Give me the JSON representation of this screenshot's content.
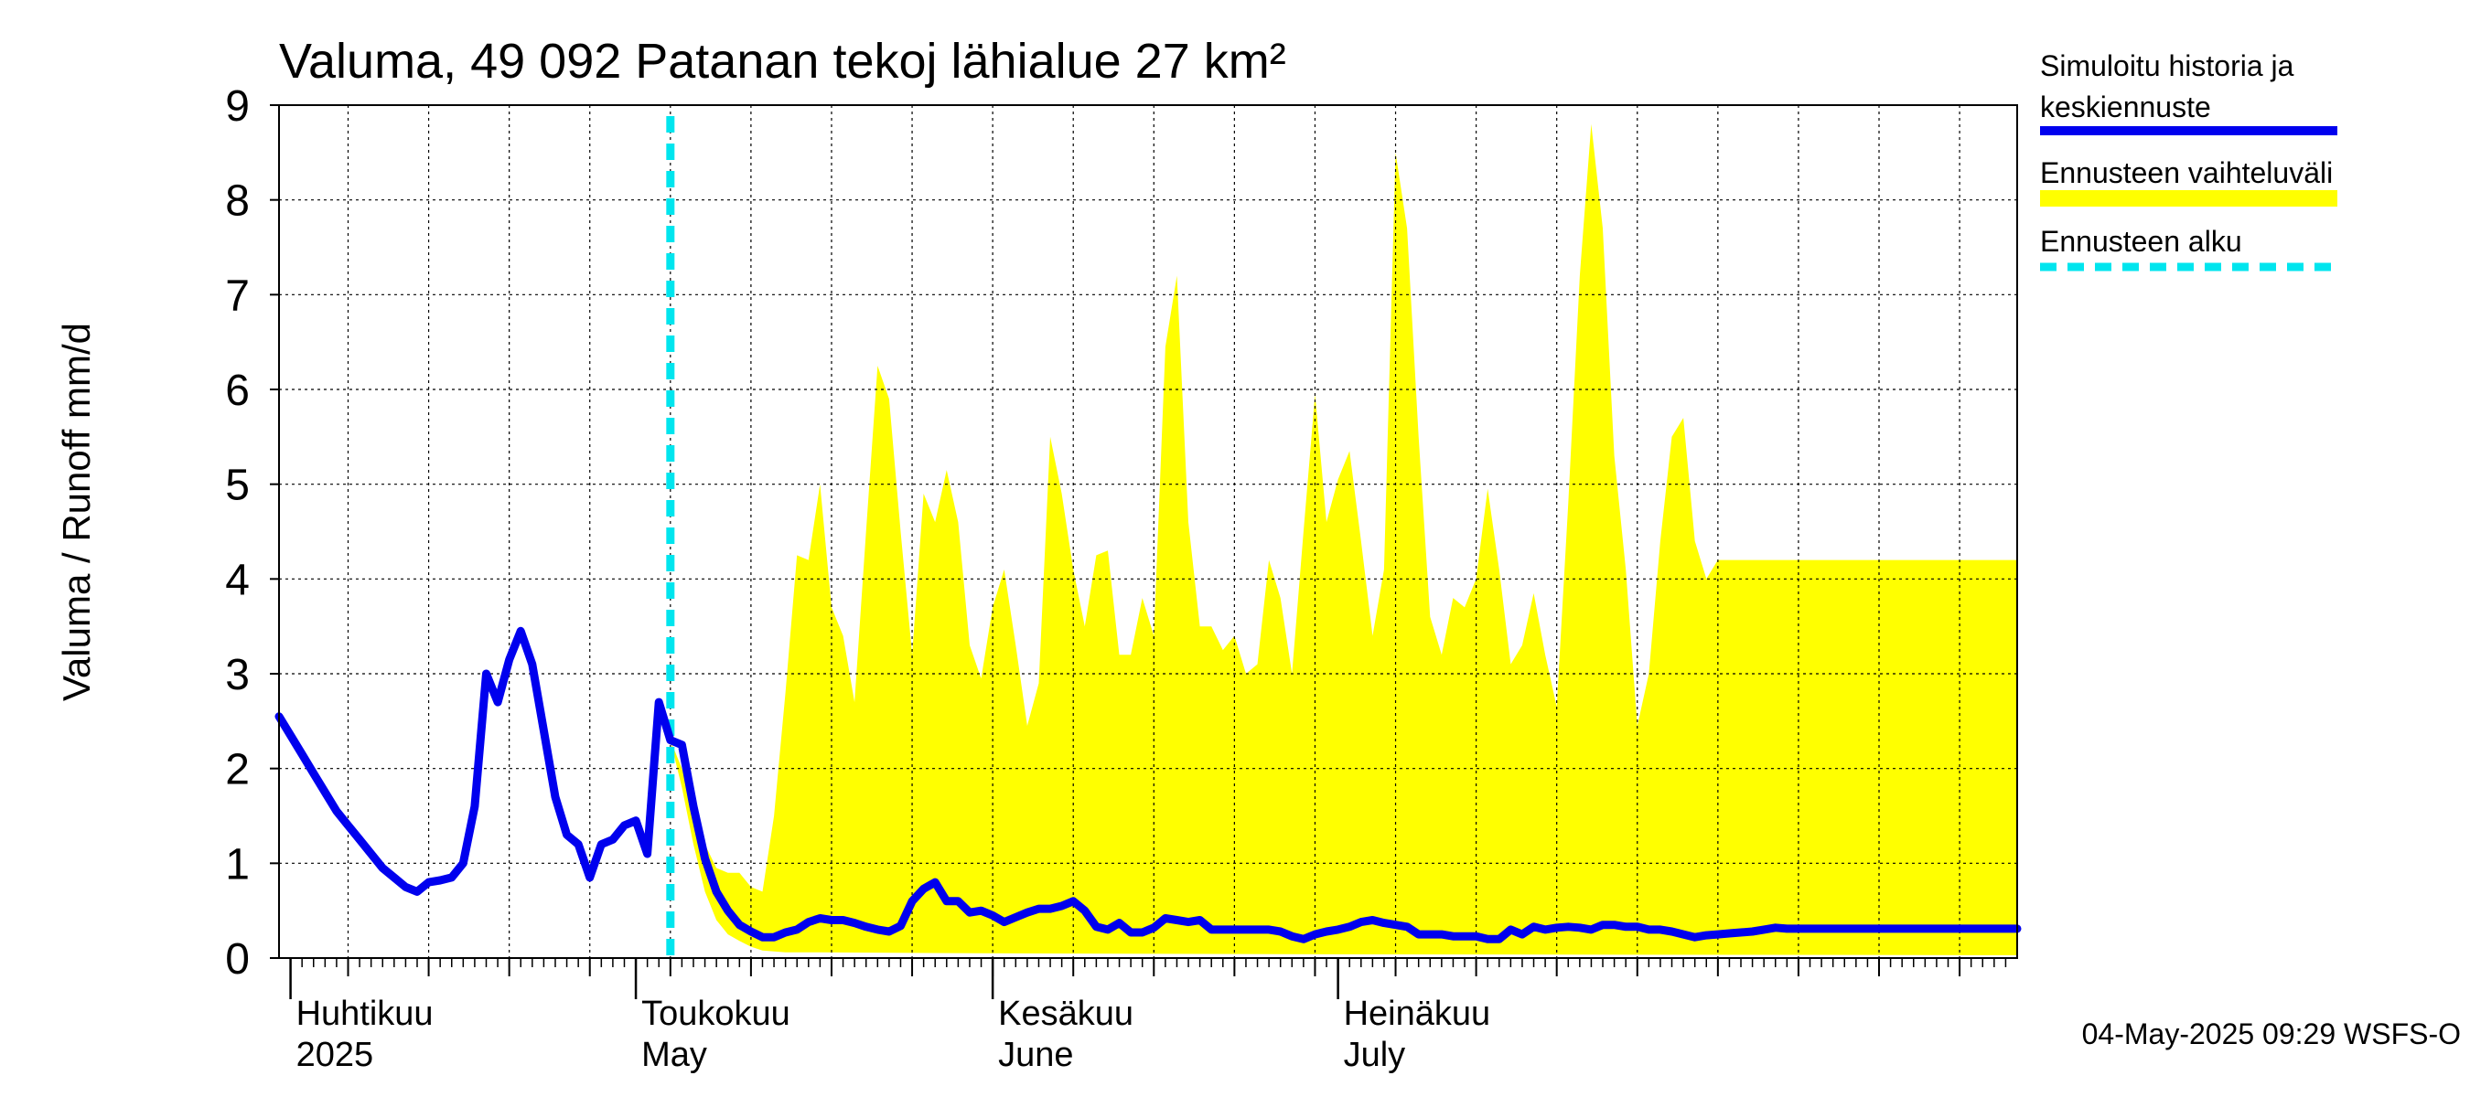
{
  "chart_data": {
    "type": "area",
    "title": "Valuma, 49 092 Patanan tekoj lähialue 27 km²",
    "ylabel": "Valuma / Runoff     mm/d",
    "xlabel": "",
    "ylim": [
      0,
      9
    ],
    "yticks": [
      0,
      1,
      2,
      3,
      4,
      5,
      6,
      7,
      8,
      9
    ],
    "xlim": [
      "2025-03-31",
      "2025-08-29"
    ],
    "grid": true,
    "legend_position": "right",
    "forecast_start": "2025-05-04",
    "month_labels": [
      {
        "date": "2025-04-01",
        "fi": "Huhtikuu",
        "en": "2025"
      },
      {
        "date": "2025-05-01",
        "fi": "Toukokuu",
        "en": "May"
      },
      {
        "date": "2025-06-01",
        "fi": "Kesäkuu",
        "en": "June"
      },
      {
        "date": "2025-07-01",
        "fi": "Heinäkuu",
        "en": "July"
      }
    ],
    "week_tick_dates": [
      "2025-04-06",
      "2025-04-13",
      "2025-04-20",
      "2025-04-27",
      "2025-05-04",
      "2025-05-11",
      "2025-05-18",
      "2025-05-25",
      "2025-06-01",
      "2025-06-08",
      "2025-06-15",
      "2025-06-22",
      "2025-06-29",
      "2025-07-06",
      "2025-07-13",
      "2025-07-20",
      "2025-07-27",
      "2025-08-03",
      "2025-08-10",
      "2025-08-17",
      "2025-08-24"
    ],
    "series": [
      {
        "name": "Simuloitu historia ja keskiennuste",
        "color": "#0000ee",
        "points": [
          [
            "2025-03-31",
            2.55
          ],
          [
            "2025-04-01",
            2.35
          ],
          [
            "2025-04-02",
            2.15
          ],
          [
            "2025-04-03",
            1.95
          ],
          [
            "2025-04-04",
            1.75
          ],
          [
            "2025-04-05",
            1.55
          ],
          [
            "2025-04-06",
            1.4
          ],
          [
            "2025-04-07",
            1.25
          ],
          [
            "2025-04-08",
            1.1
          ],
          [
            "2025-04-09",
            0.95
          ],
          [
            "2025-04-10",
            0.85
          ],
          [
            "2025-04-11",
            0.75
          ],
          [
            "2025-04-12",
            0.7
          ],
          [
            "2025-04-13",
            0.8
          ],
          [
            "2025-04-14",
            0.82
          ],
          [
            "2025-04-15",
            0.85
          ],
          [
            "2025-04-16",
            1.0
          ],
          [
            "2025-04-17",
            1.6
          ],
          [
            "2025-04-18",
            3.0
          ],
          [
            "2025-04-19",
            2.7
          ],
          [
            "2025-04-20",
            3.15
          ],
          [
            "2025-04-21",
            3.45
          ],
          [
            "2025-04-22",
            3.1
          ],
          [
            "2025-04-23",
            2.4
          ],
          [
            "2025-04-24",
            1.7
          ],
          [
            "2025-04-25",
            1.3
          ],
          [
            "2025-04-26",
            1.2
          ],
          [
            "2025-04-27",
            0.85
          ],
          [
            "2025-04-28",
            1.2
          ],
          [
            "2025-04-29",
            1.25
          ],
          [
            "2025-04-30",
            1.4
          ],
          [
            "2025-05-01",
            1.45
          ],
          [
            "2025-05-02",
            1.1
          ],
          [
            "2025-05-03",
            2.7
          ],
          [
            "2025-05-04",
            2.3
          ],
          [
            "2025-05-05",
            2.25
          ],
          [
            "2025-05-06",
            1.6
          ],
          [
            "2025-05-07",
            1.05
          ],
          [
            "2025-05-08",
            0.7
          ],
          [
            "2025-05-09",
            0.5
          ],
          [
            "2025-05-10",
            0.35
          ],
          [
            "2025-05-11",
            0.28
          ],
          [
            "2025-05-12",
            0.22
          ],
          [
            "2025-05-13",
            0.22
          ],
          [
            "2025-05-14",
            0.27
          ],
          [
            "2025-05-15",
            0.3
          ],
          [
            "2025-05-16",
            0.38
          ],
          [
            "2025-05-17",
            0.42
          ],
          [
            "2025-05-18",
            0.4
          ],
          [
            "2025-05-19",
            0.4
          ],
          [
            "2025-05-20",
            0.37
          ],
          [
            "2025-05-21",
            0.33
          ],
          [
            "2025-05-22",
            0.3
          ],
          [
            "2025-05-23",
            0.28
          ],
          [
            "2025-05-24",
            0.34
          ],
          [
            "2025-05-25",
            0.6
          ],
          [
            "2025-05-26",
            0.73
          ],
          [
            "2025-05-27",
            0.8
          ],
          [
            "2025-05-28",
            0.6
          ],
          [
            "2025-05-29",
            0.6
          ],
          [
            "2025-05-30",
            0.48
          ],
          [
            "2025-05-31",
            0.5
          ],
          [
            "2025-06-01",
            0.45
          ],
          [
            "2025-06-02",
            0.38
          ],
          [
            "2025-06-03",
            0.43
          ],
          [
            "2025-06-04",
            0.48
          ],
          [
            "2025-06-05",
            0.52
          ],
          [
            "2025-06-06",
            0.52
          ],
          [
            "2025-06-07",
            0.55
          ],
          [
            "2025-06-08",
            0.6
          ],
          [
            "2025-06-09",
            0.5
          ],
          [
            "2025-06-10",
            0.33
          ],
          [
            "2025-06-11",
            0.3
          ],
          [
            "2025-06-12",
            0.37
          ],
          [
            "2025-06-13",
            0.27
          ],
          [
            "2025-06-14",
            0.27
          ],
          [
            "2025-06-15",
            0.32
          ],
          [
            "2025-06-16",
            0.42
          ],
          [
            "2025-06-17",
            0.4
          ],
          [
            "2025-06-18",
            0.38
          ],
          [
            "2025-06-19",
            0.4
          ],
          [
            "2025-06-20",
            0.3
          ],
          [
            "2025-06-21",
            0.3
          ],
          [
            "2025-06-22",
            0.3
          ],
          [
            "2025-06-23",
            0.3
          ],
          [
            "2025-06-24",
            0.3
          ],
          [
            "2025-06-25",
            0.3
          ],
          [
            "2025-06-26",
            0.28
          ],
          [
            "2025-06-27",
            0.23
          ],
          [
            "2025-06-28",
            0.2
          ],
          [
            "2025-06-29",
            0.25
          ],
          [
            "2025-06-30",
            0.28
          ],
          [
            "2025-07-01",
            0.3
          ],
          [
            "2025-07-02",
            0.33
          ],
          [
            "2025-07-03",
            0.38
          ],
          [
            "2025-07-04",
            0.4
          ],
          [
            "2025-07-05",
            0.37
          ],
          [
            "2025-07-06",
            0.35
          ],
          [
            "2025-07-07",
            0.33
          ],
          [
            "2025-07-08",
            0.25
          ],
          [
            "2025-07-09",
            0.25
          ],
          [
            "2025-07-10",
            0.25
          ],
          [
            "2025-07-11",
            0.23
          ],
          [
            "2025-07-12",
            0.23
          ],
          [
            "2025-07-13",
            0.23
          ],
          [
            "2025-07-14",
            0.2
          ],
          [
            "2025-07-15",
            0.2
          ],
          [
            "2025-07-16",
            0.3
          ],
          [
            "2025-07-17",
            0.25
          ],
          [
            "2025-07-18",
            0.33
          ],
          [
            "2025-07-19",
            0.3
          ],
          [
            "2025-07-20",
            0.32
          ],
          [
            "2025-07-21",
            0.33
          ],
          [
            "2025-07-22",
            0.32
          ],
          [
            "2025-07-23",
            0.3
          ],
          [
            "2025-07-24",
            0.35
          ],
          [
            "2025-07-25",
            0.35
          ],
          [
            "2025-07-26",
            0.33
          ],
          [
            "2025-07-27",
            0.33
          ],
          [
            "2025-07-28",
            0.3
          ],
          [
            "2025-07-29",
            0.3
          ],
          [
            "2025-07-30",
            0.28
          ],
          [
            "2025-07-31",
            0.25
          ],
          [
            "2025-08-01",
            0.22
          ],
          [
            "2025-08-02",
            0.24
          ],
          [
            "2025-08-03",
            0.25
          ],
          [
            "2025-08-04",
            0.26
          ],
          [
            "2025-08-05",
            0.27
          ],
          [
            "2025-08-06",
            0.28
          ],
          [
            "2025-08-07",
            0.3
          ],
          [
            "2025-08-08",
            0.32
          ],
          [
            "2025-08-09",
            0.31
          ],
          [
            "2025-08-29",
            0.31
          ]
        ]
      },
      {
        "name": "Ennusteen vaihteluväli",
        "color": "#ffff00",
        "upper": [
          [
            "2025-05-04",
            2.3
          ],
          [
            "2025-05-05",
            2.0
          ],
          [
            "2025-05-06",
            1.6
          ],
          [
            "2025-05-07",
            1.2
          ],
          [
            "2025-05-08",
            0.95
          ],
          [
            "2025-05-09",
            0.9
          ],
          [
            "2025-05-10",
            0.9
          ],
          [
            "2025-05-11",
            0.75
          ],
          [
            "2025-05-12",
            0.7
          ],
          [
            "2025-05-13",
            1.5
          ],
          [
            "2025-05-14",
            2.8
          ],
          [
            "2025-05-15",
            4.25
          ],
          [
            "2025-05-16",
            4.2
          ],
          [
            "2025-05-17",
            5.0
          ],
          [
            "2025-05-18",
            3.7
          ],
          [
            "2025-05-19",
            3.4
          ],
          [
            "2025-05-20",
            2.7
          ],
          [
            "2025-05-21",
            4.5
          ],
          [
            "2025-05-22",
            6.25
          ],
          [
            "2025-05-23",
            5.9
          ],
          [
            "2025-05-24",
            4.5
          ],
          [
            "2025-05-25",
            3.2
          ],
          [
            "2025-05-26",
            4.9
          ],
          [
            "2025-05-27",
            4.6
          ],
          [
            "2025-05-28",
            5.15
          ],
          [
            "2025-05-29",
            4.6
          ],
          [
            "2025-05-30",
            3.3
          ],
          [
            "2025-05-31",
            2.95
          ],
          [
            "2025-06-01",
            3.7
          ],
          [
            "2025-06-02",
            4.1
          ],
          [
            "2025-06-03",
            3.3
          ],
          [
            "2025-06-04",
            2.45
          ],
          [
            "2025-06-05",
            2.9
          ],
          [
            "2025-06-06",
            5.5
          ],
          [
            "2025-06-07",
            4.9
          ],
          [
            "2025-06-08",
            4.1
          ],
          [
            "2025-06-09",
            3.5
          ],
          [
            "2025-06-10",
            4.25
          ],
          [
            "2025-06-11",
            4.3
          ],
          [
            "2025-06-12",
            3.2
          ],
          [
            "2025-06-13",
            3.2
          ],
          [
            "2025-06-14",
            3.8
          ],
          [
            "2025-06-15",
            3.4
          ],
          [
            "2025-06-16",
            6.45
          ],
          [
            "2025-06-17",
            7.2
          ],
          [
            "2025-06-18",
            4.6
          ],
          [
            "2025-06-19",
            3.5
          ],
          [
            "2025-06-20",
            3.5
          ],
          [
            "2025-06-21",
            3.25
          ],
          [
            "2025-06-22",
            3.4
          ],
          [
            "2025-06-23",
            3.0
          ],
          [
            "2025-06-24",
            3.1
          ],
          [
            "2025-06-25",
            4.2
          ],
          [
            "2025-06-26",
            3.8
          ],
          [
            "2025-06-27",
            3.0
          ],
          [
            "2025-06-28",
            4.5
          ],
          [
            "2025-06-29",
            5.95
          ],
          [
            "2025-06-30",
            4.6
          ],
          [
            "2025-07-01",
            5.05
          ],
          [
            "2025-07-02",
            5.35
          ],
          [
            "2025-07-03",
            4.4
          ],
          [
            "2025-07-04",
            3.4
          ],
          [
            "2025-07-05",
            4.1
          ],
          [
            "2025-07-06",
            8.5
          ],
          [
            "2025-07-07",
            7.7
          ],
          [
            "2025-07-08",
            5.5
          ],
          [
            "2025-07-09",
            3.6
          ],
          [
            "2025-07-10",
            3.2
          ],
          [
            "2025-07-11",
            3.8
          ],
          [
            "2025-07-12",
            3.7
          ],
          [
            "2025-07-13",
            4.0
          ],
          [
            "2025-07-14",
            4.95
          ],
          [
            "2025-07-15",
            4.1
          ],
          [
            "2025-07-16",
            3.1
          ],
          [
            "2025-07-17",
            3.3
          ],
          [
            "2025-07-18",
            3.85
          ],
          [
            "2025-07-19",
            3.2
          ],
          [
            "2025-07-20",
            2.65
          ],
          [
            "2025-07-21",
            4.8
          ],
          [
            "2025-07-22",
            7.2
          ],
          [
            "2025-07-23",
            8.8
          ],
          [
            "2025-07-24",
            7.7
          ],
          [
            "2025-07-25",
            5.3
          ],
          [
            "2025-07-26",
            4.1
          ],
          [
            "2025-07-27",
            2.45
          ],
          [
            "2025-07-28",
            3.0
          ],
          [
            "2025-07-29",
            4.4
          ],
          [
            "2025-07-30",
            5.5
          ],
          [
            "2025-07-31",
            5.7
          ],
          [
            "2025-08-01",
            4.4
          ],
          [
            "2025-08-02",
            4.0
          ],
          [
            "2025-08-03",
            4.2
          ],
          [
            "2025-08-29",
            4.2
          ]
        ],
        "lower": [
          [
            "2025-05-04",
            2.3
          ],
          [
            "2025-05-05",
            1.8
          ],
          [
            "2025-05-06",
            1.2
          ],
          [
            "2025-05-07",
            0.7
          ],
          [
            "2025-05-08",
            0.4
          ],
          [
            "2025-05-09",
            0.25
          ],
          [
            "2025-05-10",
            0.18
          ],
          [
            "2025-05-11",
            0.12
          ],
          [
            "2025-05-12",
            0.08
          ],
          [
            "2025-05-13",
            0.07
          ],
          [
            "2025-05-14",
            0.06
          ],
          [
            "2025-05-17",
            0.06
          ],
          [
            "2025-05-31",
            0.05
          ],
          [
            "2025-06-30",
            0.04
          ],
          [
            "2025-08-29",
            0.03
          ]
        ]
      },
      {
        "name": "Ennusteen alku",
        "color": "#00e5ee"
      }
    ],
    "footer": "04-May-2025 09:29 WSFS-O"
  }
}
